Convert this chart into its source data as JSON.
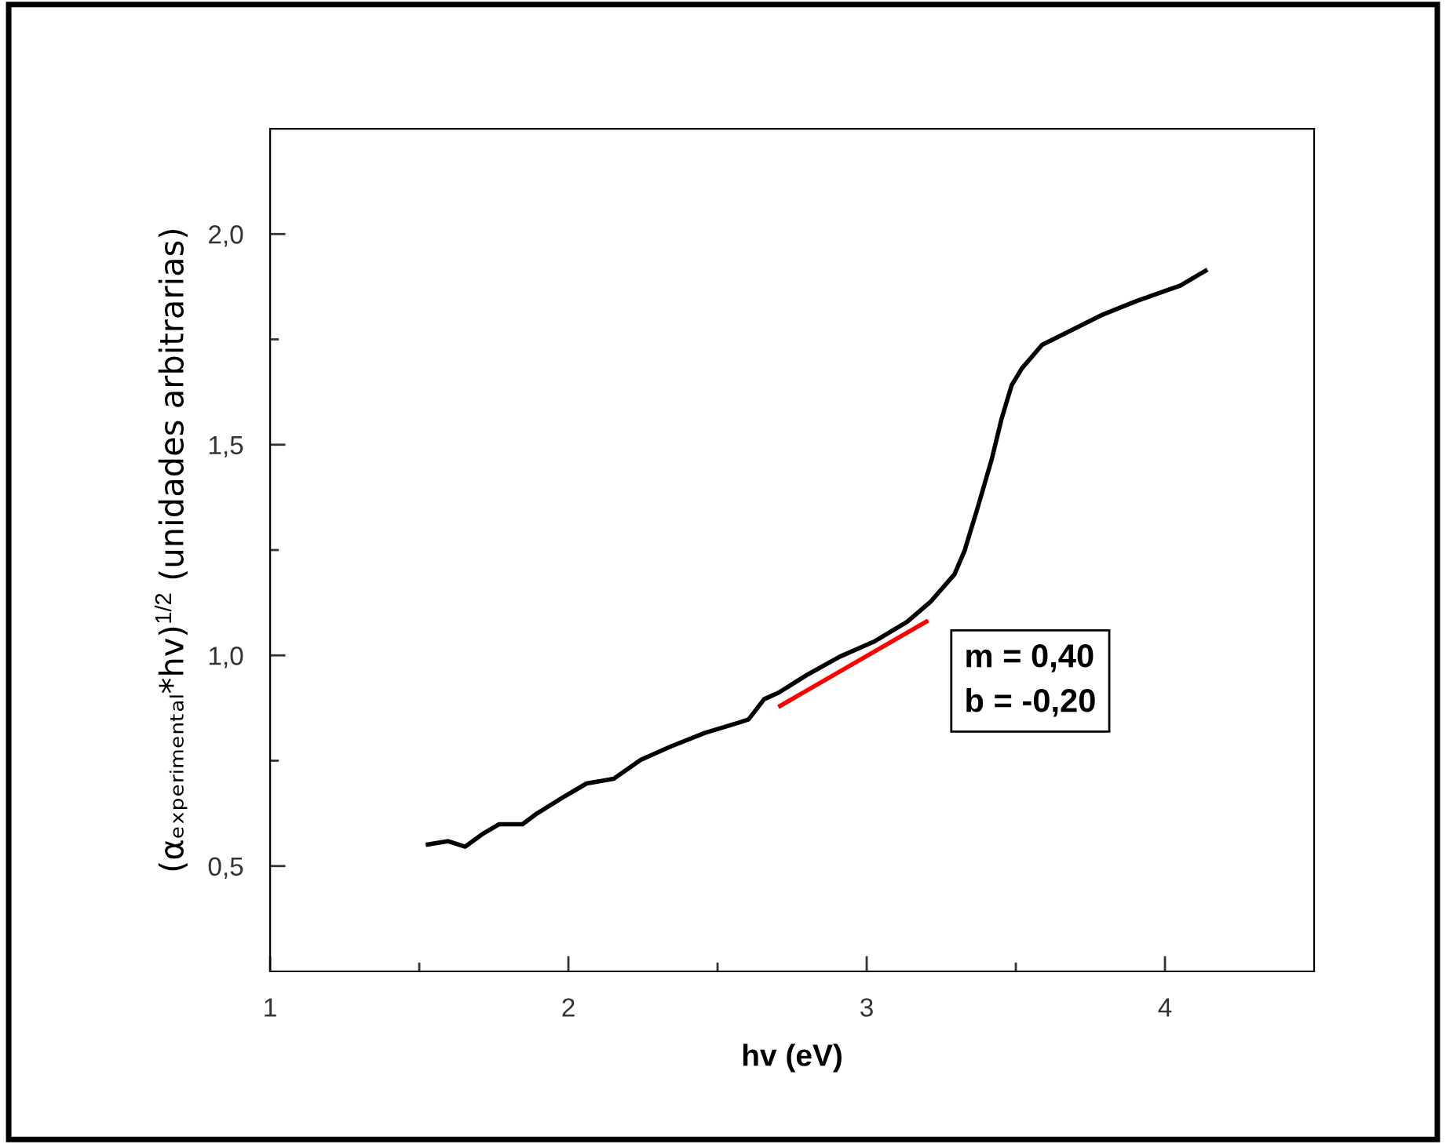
{
  "chart_data": {
    "type": "line",
    "xlabel": "hv (eV)",
    "ylabel": "(αₑₓₚₑᵣᵢₘₑₙₜₐₗ*hv)$^{1/2}$ (unidades arbitrarias)",
    "xlim": [
      1,
      4.5
    ],
    "ylim": [
      0.25,
      2.25
    ],
    "xticks": [
      1,
      {
        "value": 1.5,
        "label": null
      },
      2,
      {
        "value": 2.5,
        "label": null
      },
      3,
      {
        "value": 3.5,
        "label": null
      },
      4
    ],
    "yticks": [
      {
        "value": 0.5,
        "label": "0,5"
      },
      {
        "value": 0.75,
        "label": null
      },
      {
        "value": 1.0,
        "label": "1,0"
      },
      {
        "value": 1.25,
        "label": null
      },
      {
        "value": 1.5,
        "label": "1,5"
      },
      {
        "value": 1.75,
        "label": null
      },
      {
        "value": 2.0,
        "label": "2,0"
      }
    ],
    "grid": false,
    "line_style": "solid",
    "series": [
      {
        "color": "#000000",
        "x": [
          1.529,
          1.597,
          1.654,
          1.71,
          1.767,
          1.846,
          1.891,
          1.982,
          2.061,
          2.152,
          2.242,
          2.344,
          2.457,
          2.57,
          2.604,
          2.656,
          2.706,
          2.796,
          2.91,
          3.023,
          3.136,
          3.215,
          3.294,
          3.328,
          3.373,
          3.419,
          3.452,
          3.486,
          3.52,
          3.588,
          3.679,
          3.792,
          3.905,
          4.052,
          4.136
        ],
        "values": [
          0.551,
          0.559,
          0.546,
          0.575,
          0.599,
          0.599,
          0.623,
          0.663,
          0.696,
          0.707,
          0.752,
          0.784,
          0.816,
          0.84,
          0.848,
          0.896,
          0.912,
          0.952,
          0.997,
          1.032,
          1.08,
          1.128,
          1.192,
          1.248,
          1.353,
          1.465,
          1.561,
          1.641,
          1.681,
          1.737,
          1.769,
          1.809,
          1.841,
          1.878,
          1.913
        ]
      },
      {
        "color": "#ff0000",
        "x": [
          2.71,
          3.2
        ],
        "values": [
          0.88,
          1.08
        ]
      }
    ],
    "annotations": [
      "m = 0,40\nb = -0,20"
    ]
  }
}
